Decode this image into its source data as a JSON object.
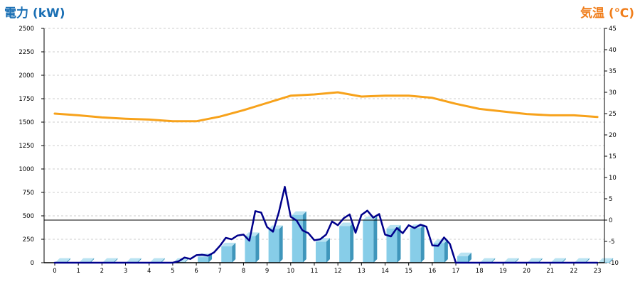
{
  "chart_data": {
    "type": "bar",
    "left_axis_title": "電力 (kW)",
    "right_axis_title": "気温 (℃)",
    "colors": {
      "left_title": "#1a6fb4",
      "right_title": "#f07d1a",
      "bar_front": "#87cde8",
      "bar_side": "#3f96bb",
      "bar_top": "#b9e3f2",
      "power_line": "#00008b",
      "temp_line": "#f7a21b",
      "grid": "#cccccc",
      "axis": "#000000"
    },
    "categories": [
      "0",
      "1",
      "2",
      "3",
      "4",
      "5",
      "6",
      "7",
      "8",
      "9",
      "10",
      "11",
      "12",
      "13",
      "14",
      "15",
      "16",
      "17",
      "18",
      "19",
      "20",
      "21",
      "22",
      "23"
    ],
    "y_left": {
      "min": 0,
      "max": 2500,
      "ticks": [
        0,
        250,
        500,
        750,
        1000,
        1250,
        1500,
        1750,
        2000,
        2250,
        2500
      ]
    },
    "y_right": {
      "min": -10,
      "max": 45,
      "ticks": [
        -10,
        -5,
        0,
        5,
        10,
        15,
        20,
        25,
        30,
        35,
        40,
        45
      ]
    },
    "grid": true,
    "reference_line_left": 455,
    "series": [
      {
        "kind": "bar",
        "axis": "left",
        "values": [
          10,
          10,
          10,
          10,
          10,
          10,
          60,
          175,
          285,
          360,
          510,
          225,
          390,
          455,
          365,
          370,
          210,
          70,
          10,
          10,
          10,
          10,
          10,
          10
        ]
      },
      {
        "kind": "line",
        "axis": "left",
        "x": [
          0,
          0.5,
          1,
          1.5,
          2,
          2.5,
          3,
          3.5,
          4,
          4.5,
          5,
          5.25,
          5.5,
          5.75,
          6,
          6.25,
          6.5,
          6.75,
          7,
          7.25,
          7.5,
          7.75,
          8,
          8.25,
          8.5,
          8.75,
          9,
          9.25,
          9.5,
          9.75,
          10,
          10.25,
          10.5,
          10.75,
          11,
          11.25,
          11.5,
          11.75,
          12,
          12.25,
          12.5,
          12.75,
          13,
          13.25,
          13.5,
          13.75,
          14,
          14.25,
          14.5,
          14.75,
          15,
          15.25,
          15.5,
          15.75,
          16,
          16.25,
          16.5,
          16.75,
          17,
          17.5,
          18,
          18.5,
          19,
          19.5,
          20,
          20.5,
          21,
          21.5,
          22,
          22.5,
          23
        ],
        "values": [
          0,
          0,
          0,
          0,
          0,
          0,
          0,
          0,
          0,
          0,
          0,
          15,
          55,
          40,
          80,
          85,
          75,
          110,
          180,
          265,
          250,
          290,
          300,
          235,
          550,
          535,
          380,
          330,
          540,
          810,
          490,
          450,
          345,
          315,
          240,
          250,
          300,
          440,
          400,
          475,
          515,
          320,
          510,
          555,
          480,
          520,
          300,
          280,
          370,
          315,
          400,
          370,
          405,
          385,
          185,
          180,
          270,
          200,
          0,
          0,
          0,
          0,
          0,
          0,
          0,
          0,
          0,
          0,
          0,
          0,
          0
        ]
      },
      {
        "kind": "line",
        "axis": "right",
        "x": [
          0,
          1,
          2,
          3,
          4,
          5,
          6,
          7,
          8,
          9,
          10,
          11,
          12,
          13,
          14,
          15,
          16,
          17,
          18,
          19,
          20,
          21,
          22,
          23
        ],
        "values": [
          25,
          24.6,
          24.1,
          23.8,
          23.6,
          23.2,
          23.2,
          24.3,
          25.8,
          27.5,
          29.2,
          29.5,
          30,
          29,
          29.2,
          29.2,
          28.7,
          27.3,
          26.1,
          25.5,
          24.9,
          24.6,
          24.6,
          24.2
        ]
      }
    ]
  }
}
